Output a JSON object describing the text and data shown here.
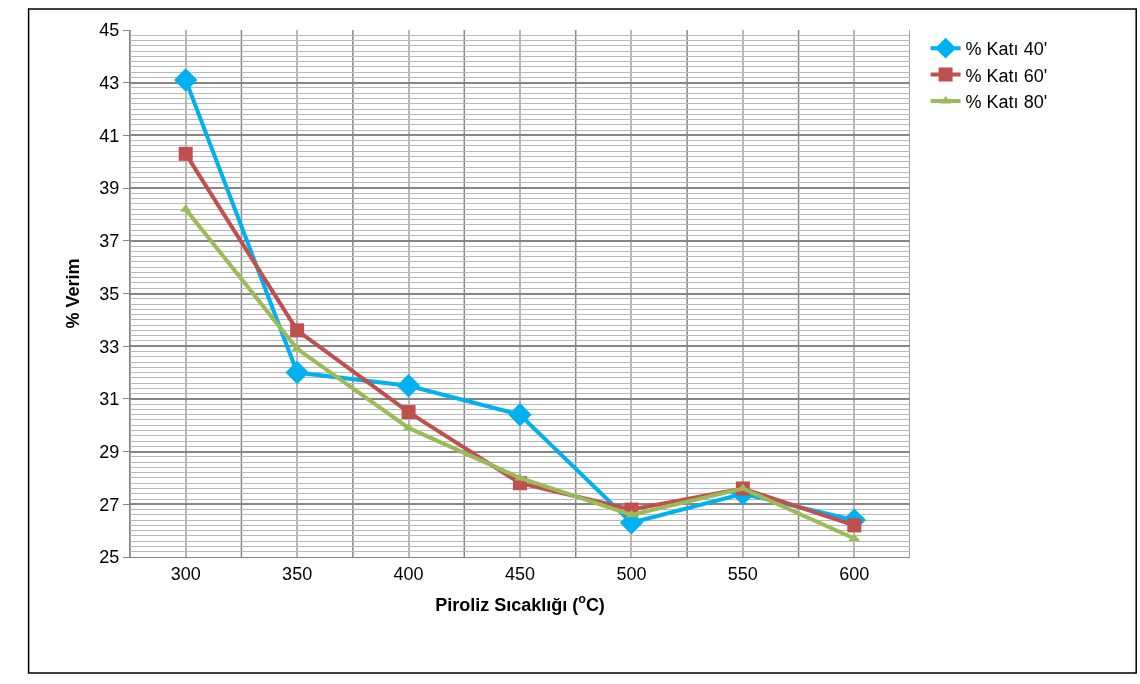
{
  "chart_data": {
    "type": "line",
    "xlabel": "Piroliz Sıcaklığı ($^{o}$C)",
    "ylabel": "% Verim",
    "categories": [
      "300",
      "350",
      "400",
      "450",
      "500",
      "550",
      "600"
    ],
    "series": [
      {
        "name": "% Katı 40'",
        "color": "#00b0f0",
        "marker": "diamond",
        "values": [
          43.1,
          32.0,
          31.5,
          30.4,
          26.3,
          27.4,
          26.4
        ]
      },
      {
        "name": "% Katı 60'",
        "color": "#c0504d",
        "marker": "square",
        "values": [
          40.3,
          33.6,
          30.5,
          27.8,
          26.8,
          27.6,
          26.2
        ]
      },
      {
        "name": "% Katı 80'",
        "color": "#9bbb59",
        "marker": "triangle",
        "values": [
          38.2,
          32.9,
          29.9,
          28.0,
          26.6,
          27.6,
          25.7
        ]
      }
    ],
    "ylim": [
      25,
      45
    ],
    "yticks": [
      25,
      27,
      29,
      31,
      33,
      35,
      37,
      39,
      41,
      43,
      45
    ],
    "grid": true,
    "legend": "top right",
    "line_style": "solid"
  }
}
